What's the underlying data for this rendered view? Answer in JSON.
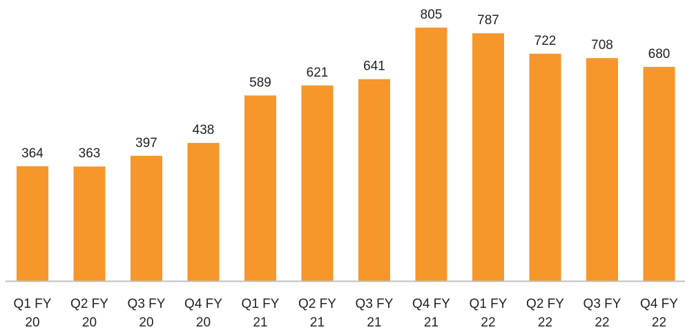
{
  "chart_data": {
    "type": "bar",
    "categories": [
      "Q1 FY 20",
      "Q2 FY 20",
      "Q3 FY 20",
      "Q4 FY 20",
      "Q1 FY 21",
      "Q2 FY 21",
      "Q3 FY 21",
      "Q4 FY 21",
      "Q1 FY 22",
      "Q2 FY 22",
      "Q3 FY 22",
      "Q4 FY 22"
    ],
    "values": [
      364,
      363,
      397,
      438,
      589,
      621,
      641,
      805,
      787,
      722,
      708,
      680
    ],
    "color": "#f7962b"
  }
}
